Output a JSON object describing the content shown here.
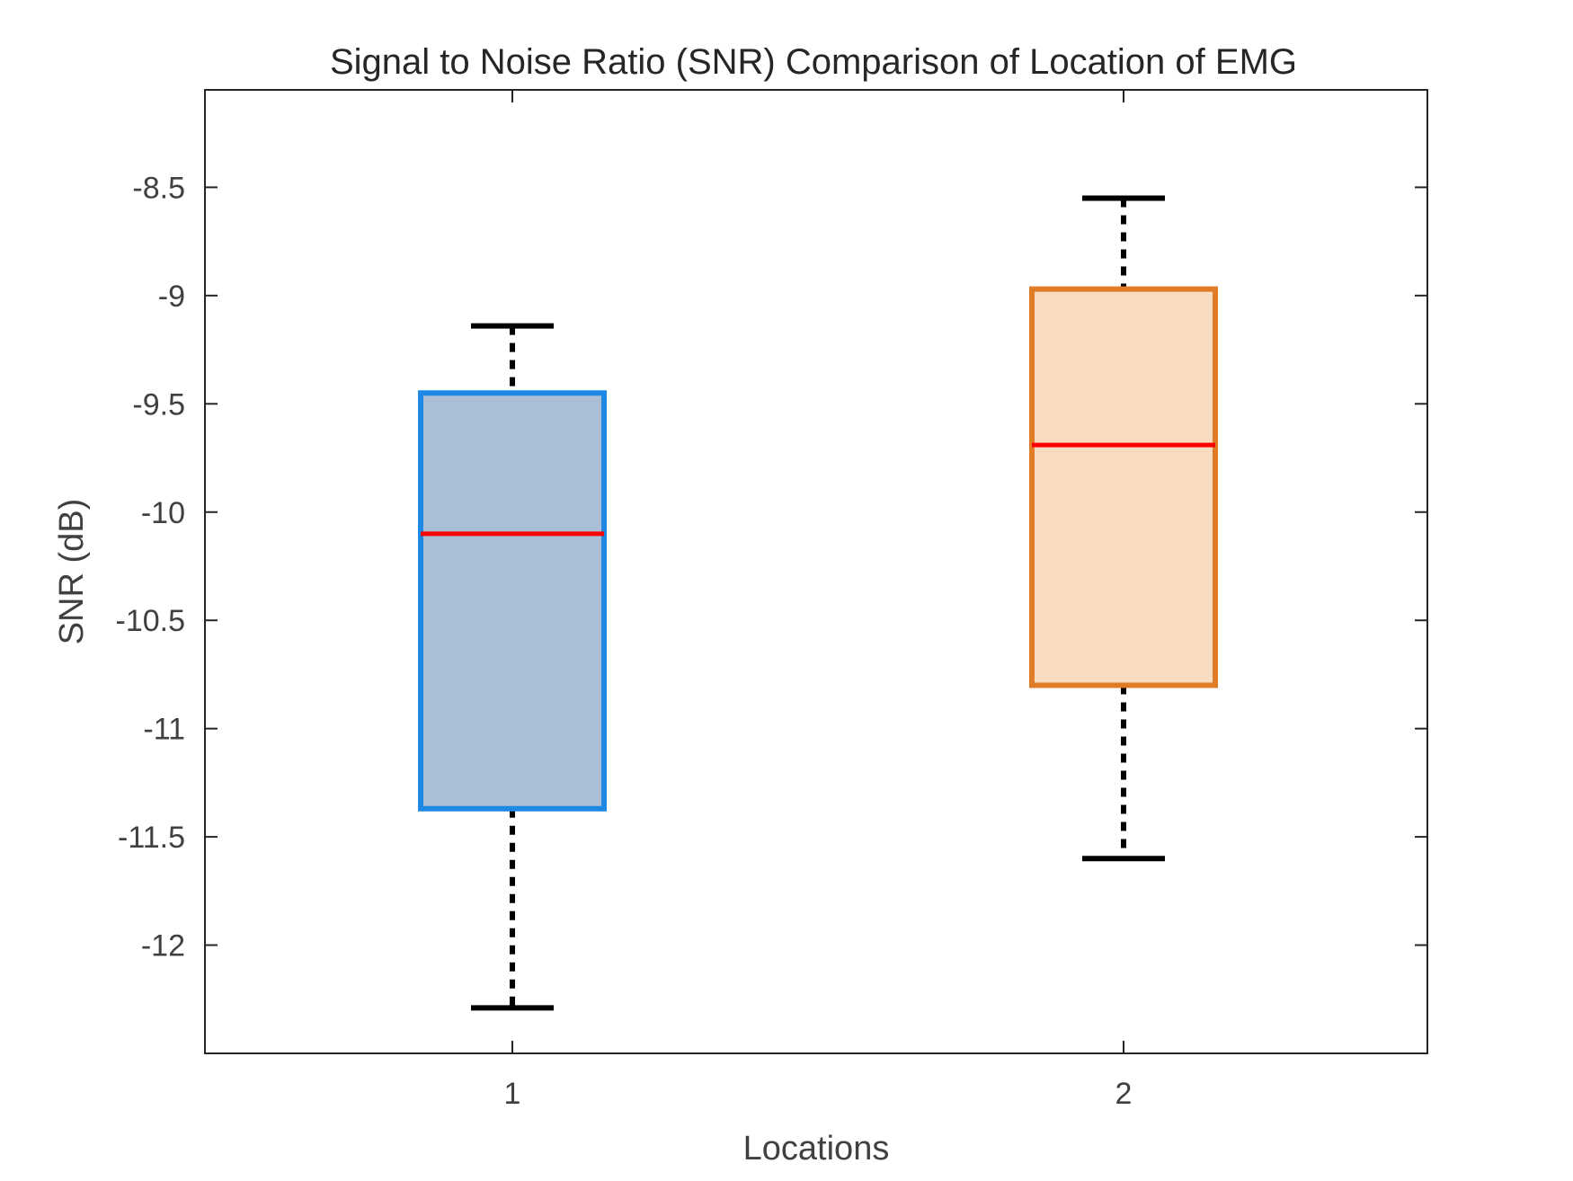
{
  "chart_data": {
    "type": "box",
    "title": "Signal to Noise Ratio (SNR) Comparison of Location of EMG",
    "xlabel": "Locations",
    "ylabel": "SNR (dB)",
    "categories": [
      "1",
      "2"
    ],
    "ylim": [
      -12.5,
      -8.05
    ],
    "yticks": [
      -8.5,
      -9,
      -9.5,
      -10,
      -10.5,
      -11,
      -11.5,
      -12
    ],
    "ytick_labels": [
      "-8.5",
      "-9",
      "-9.5",
      "-10",
      "-10.5",
      "-11",
      "-11.5",
      "-12"
    ],
    "grid": false,
    "boxes": [
      {
        "category": "1",
        "whisker_low": -12.29,
        "q1": -11.37,
        "median": -10.1,
        "q3": -9.45,
        "whisker_high": -9.14,
        "edge_color": "#1e88e5",
        "fill_color": "#aabfd6"
      },
      {
        "category": "2",
        "whisker_low": -11.6,
        "q1": -10.8,
        "median": -9.69,
        "q3": -8.97,
        "whisker_high": -8.55,
        "edge_color": "#e07b26",
        "fill_color": "#f7dcc0"
      }
    ],
    "colors": {
      "median": "#ff0000",
      "whisker": "#000000",
      "axis": "#262626"
    }
  }
}
